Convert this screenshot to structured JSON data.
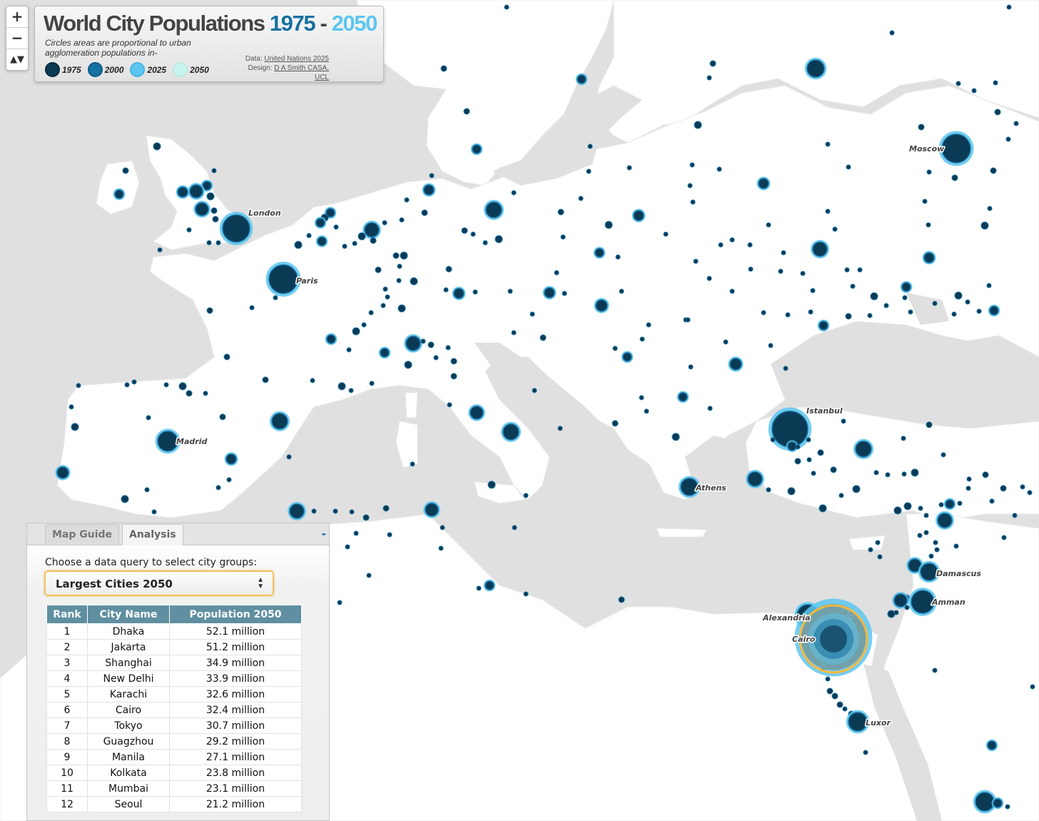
{
  "title": {
    "main": "World City Populations",
    "year_start": "1975",
    "dash": "-",
    "year_end": "2050"
  },
  "subtitle": "Circles areas are proportional to urban agglomeration populations in-",
  "legend": [
    {
      "label": "1975",
      "color": "#0b3a55"
    },
    {
      "label": "2000",
      "color": "#1670a0"
    },
    {
      "label": "2025",
      "color": "#5cc6f0"
    },
    {
      "label": "2050",
      "color": "#c8f4ee"
    }
  ],
  "credits": {
    "data_prefix": "Data:",
    "data_link": "United Nations 2025",
    "design_prefix": "Design:",
    "design_link": "D A Smith CASA, UCL"
  },
  "zoom": {
    "in": "+",
    "out": "−",
    "reset": "▲▼"
  },
  "panel": {
    "tabs": [
      "Map Guide",
      "Analysis"
    ],
    "active_tab": "Analysis",
    "collapse": "-",
    "prompt": "Choose a data query to select city groups:",
    "select_value": "Largest Cities 2050",
    "select_arrow_up": "▲",
    "select_arrow_down": "▼",
    "columns": [
      "Rank",
      "City Name",
      "Population 2050"
    ],
    "rows": [
      {
        "rank": "1",
        "city": "Dhaka",
        "pop": "52.1 million"
      },
      {
        "rank": "2",
        "city": "Jakarta",
        "pop": "51.2 million"
      },
      {
        "rank": "3",
        "city": "Shanghai",
        "pop": "34.9 million"
      },
      {
        "rank": "4",
        "city": "New Delhi",
        "pop": "33.9 million"
      },
      {
        "rank": "5",
        "city": "Karachi",
        "pop": "32.6 million"
      },
      {
        "rank": "6",
        "city": "Cairo",
        "pop": "32.4 million"
      },
      {
        "rank": "7",
        "city": "Tokyo",
        "pop": "30.7 million"
      },
      {
        "rank": "8",
        "city": "Guagzhou",
        "pop": "29.2 million"
      },
      {
        "rank": "9",
        "city": "Manila",
        "pop": "27.1 million"
      },
      {
        "rank": "10",
        "city": "Kolkata",
        "pop": "23.8 million"
      },
      {
        "rank": "11",
        "city": "Mumbai",
        "pop": "23.1 million"
      },
      {
        "rank": "12",
        "city": "Seoul",
        "pop": "21.2 million"
      }
    ]
  },
  "map": {
    "colors": {
      "sea": "#e0e0e0",
      "land": "#ffffff",
      "highlight": "#f5b83d"
    },
    "labels": [
      "London",
      "Paris",
      "Madrid",
      "Moscow",
      "Istanbul",
      "Athens",
      "Alexandria",
      "Cairo",
      "Damascus",
      "Amman",
      "Luxor"
    ]
  }
}
